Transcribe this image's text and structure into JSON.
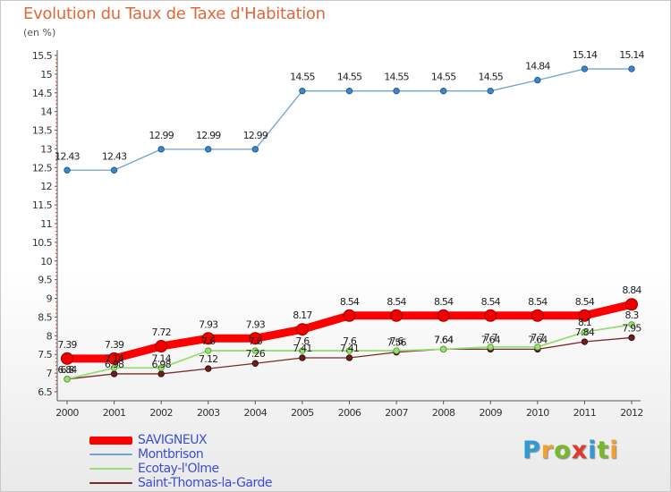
{
  "title": "Evolution du Taux de Taxe d'Habitation",
  "subtitle": "(en %)",
  "logo": {
    "letters": [
      "P",
      "r",
      "o",
      "x",
      "i",
      "t",
      "i"
    ],
    "colors": [
      "#2e9bd6",
      "#f2a12e",
      "#79b928",
      "#e03a2e",
      "#2e9bd6",
      "#79b928",
      "#f2a12e"
    ]
  },
  "chart_data": {
    "type": "line",
    "title": "Evolution du Taux de Taxe d'Habitation",
    "subtitle": "(en %)",
    "categories": [
      "2000",
      "2001",
      "2002",
      "2003",
      "2004",
      "2005",
      "2006",
      "2007",
      "2008",
      "2009",
      "2010",
      "2011",
      "2012"
    ],
    "ylim": [
      6.5,
      15.5
    ],
    "yticks": [
      "6.5",
      "7",
      "7.5",
      "8",
      "8.5",
      "9",
      "9.5",
      "10",
      "10.5",
      "11",
      "11.5",
      "12",
      "12.5",
      "13",
      "13.5",
      "14",
      "14.5",
      "15",
      "15.5"
    ],
    "grid": false,
    "legend_position": "bottom-left",
    "series": [
      {
        "name": "SAVIGNEUX",
        "color": "#ff0000",
        "values": [
          7.39,
          7.39,
          7.72,
          7.93,
          7.93,
          8.17,
          8.54,
          8.54,
          8.54,
          8.54,
          8.54,
          8.54,
          8.84
        ],
        "labels": [
          "7.39",
          "7.39",
          "7.72",
          "7.93",
          "7.93",
          "8.17",
          "8.54",
          "8.54",
          "8.54",
          "8.54",
          "8.54",
          "8.54",
          "8.84"
        ]
      },
      {
        "name": "Montbrison",
        "color": "#6fa3d8",
        "values": [
          12.43,
          12.43,
          12.99,
          12.99,
          12.99,
          14.55,
          14.55,
          14.55,
          14.55,
          14.55,
          14.84,
          15.14,
          15.14
        ],
        "labels": [
          "12.43",
          "12.43",
          "12.99",
          "12.99",
          "12.99",
          "14.55",
          "14.55",
          "14.55",
          "14.55",
          "14.55",
          "14.84",
          "15.14",
          "15.14"
        ]
      },
      {
        "name": "Ecotay-l'Olme",
        "color": "#99dd77",
        "values": [
          6.84,
          7.14,
          7.14,
          7.6,
          7.6,
          7.6,
          7.6,
          7.6,
          7.64,
          7.7,
          7.7,
          8.1,
          8.3
        ],
        "labels": [
          "6.84",
          "7.14",
          "7.14",
          "7.6",
          "7.6",
          "7.6",
          "7.6",
          "7.6",
          "7.64",
          "7.7",
          "7.7",
          "8.1",
          "8.3"
        ]
      },
      {
        "name": "Saint-Thomas-la-Garde",
        "color": "#7a2a2a",
        "values": [
          6.84,
          6.98,
          6.98,
          7.12,
          7.26,
          7.41,
          7.41,
          7.56,
          7.64,
          7.64,
          7.64,
          7.84,
          7.95
        ],
        "labels": [
          "6.8",
          "6.98",
          "6.98",
          "7.12",
          "7.26",
          "7.41",
          "7.41",
          "7.56",
          "7.64",
          "7.64",
          "7.64",
          "7.84",
          "7.95"
        ]
      }
    ]
  }
}
